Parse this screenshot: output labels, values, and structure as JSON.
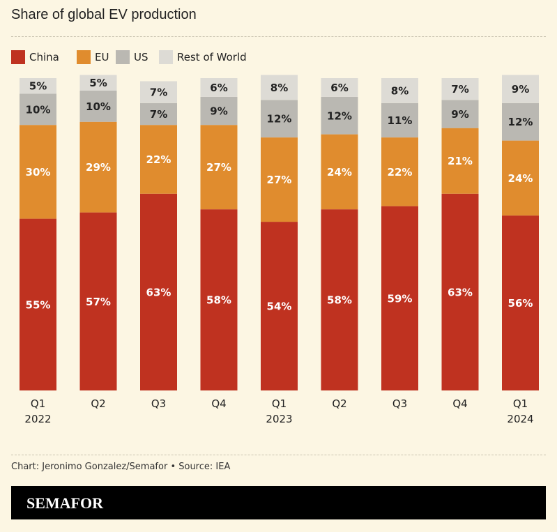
{
  "chart_data": {
    "type": "stacked-bar",
    "title": "Share of global EV production",
    "categories": [
      "Q1 2022",
      "Q2",
      "Q3",
      "Q4",
      "Q1 2023",
      "Q2",
      "Q3",
      "Q4",
      "Q1 2024"
    ],
    "ylim": [
      0,
      100
    ],
    "series": [
      {
        "name": "China",
        "color": "#bf3220",
        "label_color": "#ffffff",
        "values": [
          55,
          57,
          63,
          58,
          54,
          58,
          59,
          63,
          56
        ],
        "value_labels": [
          "55%",
          "57%",
          "63%",
          "58%",
          "54%",
          "58%",
          "59%",
          "63%",
          "56%"
        ]
      },
      {
        "name": "EU",
        "color": "#e08c2e",
        "label_color": "#ffffff",
        "values": [
          30,
          29,
          22,
          27,
          27,
          24,
          22,
          21,
          24
        ],
        "value_labels": [
          "30%",
          "29%",
          "22%",
          "27%",
          "27%",
          "24%",
          "22%",
          "21%",
          "24%"
        ]
      },
      {
        "name": "US",
        "color": "#bab8b2",
        "label_color": "#222222",
        "values": [
          10,
          10,
          7,
          9,
          12,
          12,
          11,
          9,
          12
        ],
        "value_labels": [
          "10%",
          "10%",
          "7%",
          "9%",
          "12%",
          "12%",
          "11%",
          "9%",
          "12%"
        ]
      },
      {
        "name": "Rest of World",
        "color": "#dddbd5",
        "label_color": "#222222",
        "values": [
          5,
          5,
          7,
          6,
          8,
          6,
          8,
          7,
          9
        ],
        "value_labels": [
          "5%",
          "5%",
          "7%",
          "6%",
          "8%",
          "6%",
          "8%",
          "7%",
          "9%"
        ]
      }
    ]
  },
  "source": "Chart: Jeronimo Gonzalez/Semafor • Source: IEA",
  "brand": "SEMAFOR"
}
